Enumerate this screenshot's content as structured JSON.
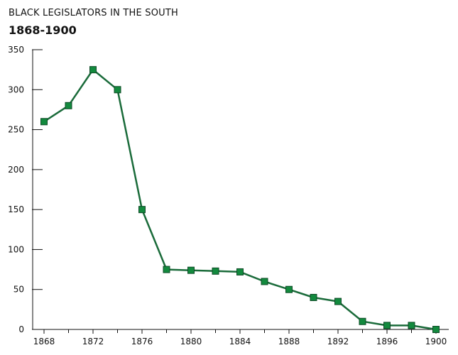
{
  "chart_data": {
    "type": "line",
    "title": "BLACK LEGISLATORS IN THE SOUTH",
    "subtitle": "1868-1900",
    "xlabel": "",
    "ylabel": "",
    "xlim": [
      1867,
      1901
    ],
    "ylim": [
      0,
      350
    ],
    "x_ticks": [
      1868,
      1872,
      1876,
      1880,
      1884,
      1888,
      1892,
      1896,
      1900
    ],
    "y_ticks": [
      0,
      50,
      100,
      150,
      200,
      250,
      300,
      350
    ],
    "grid": false,
    "legend": "none",
    "colors": {
      "line": "#1a6b3a",
      "marker_fill": "#138a3e",
      "marker_stroke": "#0d4a26",
      "axis": "#111111"
    },
    "series": [
      {
        "x": [
          1868,
          1870,
          1872,
          1874,
          1876,
          1878,
          1880,
          1882,
          1884,
          1886,
          1888,
          1890,
          1892,
          1894,
          1896,
          1898,
          1900
        ],
        "y": [
          260,
          280,
          325,
          300,
          150,
          75,
          74,
          73,
          72,
          60,
          50,
          40,
          35,
          10,
          5,
          5,
          0
        ]
      }
    ]
  }
}
